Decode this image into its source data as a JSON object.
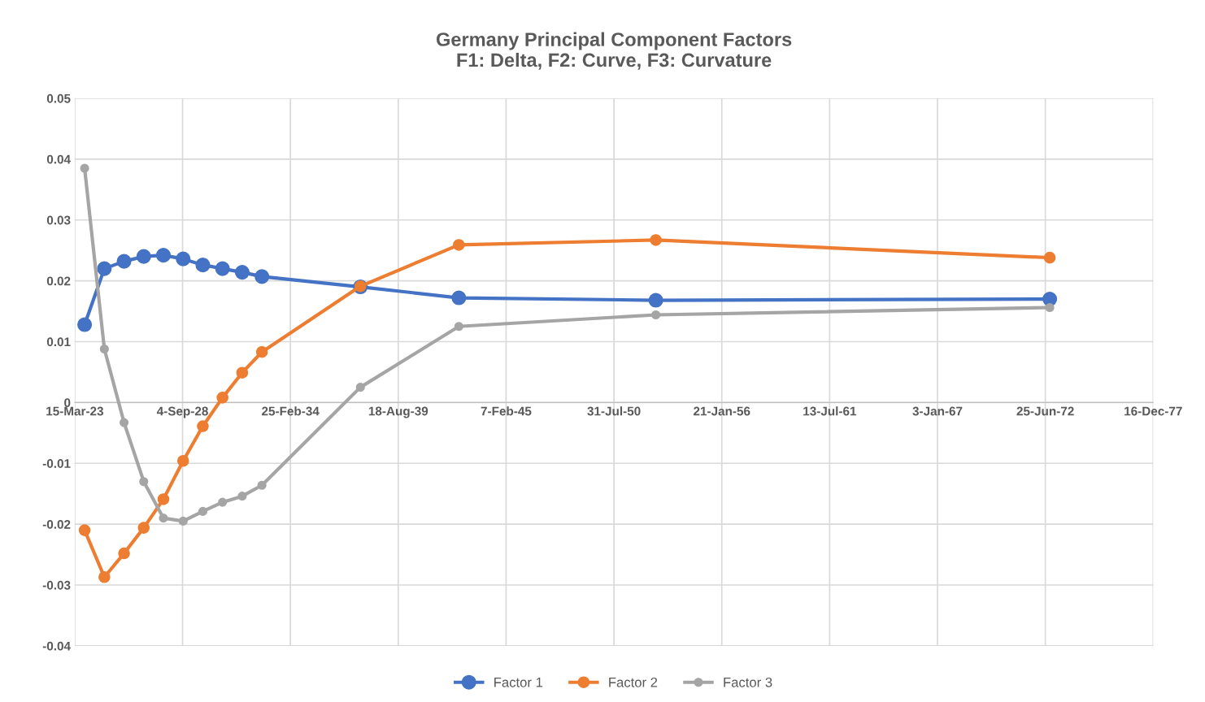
{
  "chart_data": {
    "type": "line",
    "title": "Germany Principal Component Factors\nF1: Delta, F2: Curve, F3: Curvature",
    "x": [
      "2023-09-15",
      "2024-09-15",
      "2025-09-15",
      "2026-09-15",
      "2027-09-15",
      "2028-09-15",
      "2029-09-15",
      "2030-09-15",
      "2031-09-15",
      "2032-09-15",
      "2037-09-15",
      "2042-09-15",
      "2052-09-15",
      "2072-09-15"
    ],
    "series": [
      {
        "name": "Factor 1",
        "color": "#4472c4",
        "values": [
          0.0128,
          0.022,
          0.0232,
          0.024,
          0.0242,
          0.0236,
          0.0226,
          0.022,
          0.0214,
          0.0207,
          0.019,
          0.0172,
          0.0168,
          0.017
        ]
      },
      {
        "name": "Factor 2",
        "color": "#ed7d31",
        "values": [
          -0.021,
          -0.0287,
          -0.0248,
          -0.0206,
          -0.0159,
          -0.0096,
          -0.0039,
          0.0008,
          0.0049,
          0.0083,
          0.0191,
          0.0259,
          0.0267,
          0.0238
        ]
      },
      {
        "name": "Factor 3",
        "color": "#a5a5a5",
        "values": [
          0.0385,
          0.0088,
          -0.0033,
          -0.013,
          -0.019,
          -0.0195,
          -0.0179,
          -0.0164,
          -0.0154,
          -0.0136,
          0.0025,
          0.0125,
          0.0144,
          0.0156
        ]
      }
    ],
    "xlim": [
      "2023-03-15",
      "2077-12-16"
    ],
    "xticks": [
      {
        "value": "2023-03-15",
        "label": "15-Mar-23"
      },
      {
        "value": "2028-09-04",
        "label": "4-Sep-28"
      },
      {
        "value": "2034-02-25",
        "label": "25-Feb-34"
      },
      {
        "value": "2039-08-18",
        "label": "18-Aug-39"
      },
      {
        "value": "2045-02-07",
        "label": "7-Feb-45"
      },
      {
        "value": "2050-07-31",
        "label": "31-Jul-50"
      },
      {
        "value": "2056-01-21",
        "label": "21-Jan-56"
      },
      {
        "value": "2061-07-13",
        "label": "13-Jul-61"
      },
      {
        "value": "2067-01-03",
        "label": "3-Jan-67"
      },
      {
        "value": "2072-06-25",
        "label": "25-Jun-72"
      },
      {
        "value": "2077-12-16",
        "label": "16-Dec-77"
      }
    ],
    "ylim": [
      -0.04,
      0.05
    ],
    "yticks": [
      {
        "value": -0.04,
        "label": "-0.04"
      },
      {
        "value": -0.03,
        "label": "-0.03"
      },
      {
        "value": -0.02,
        "label": "-0.02"
      },
      {
        "value": -0.01,
        "label": "-0.01"
      },
      {
        "value": 0,
        "label": "0"
      },
      {
        "value": 0.01,
        "label": "0.01"
      },
      {
        "value": 0.02,
        "label": "0.02"
      },
      {
        "value": 0.03,
        "label": "0.03"
      },
      {
        "value": 0.04,
        "label": "0.04"
      },
      {
        "value": 0.05,
        "label": "0.05"
      }
    ],
    "grid": true,
    "legend": "bottom",
    "marker": "circle",
    "line_style": "solid"
  }
}
